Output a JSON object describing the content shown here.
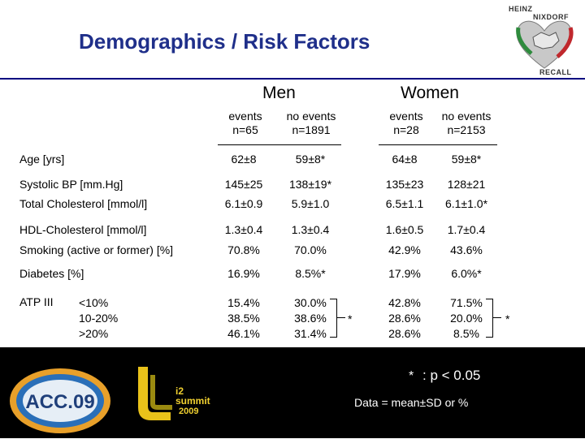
{
  "title": "Demographics / Risk Factors",
  "logo": {
    "line1": "HEINZ",
    "line2": "NIXDORF",
    "line3": "RECALL"
  },
  "groups": {
    "men": "Men",
    "women": "Women"
  },
  "columns": [
    {
      "label": "events",
      "n": "n=65"
    },
    {
      "label": "no events",
      "n": "n=1891"
    },
    {
      "label": "events",
      "n": "n=28"
    },
    {
      "label": "no events",
      "n": "n=2153"
    }
  ],
  "rows": [
    {
      "label": "Age [yrs]",
      "values": [
        "62±8",
        "59±8*",
        "64±8",
        "59±8*"
      ]
    },
    {
      "label": "Systolic BP [mm.Hg]",
      "values": [
        "145±25",
        "138±19*",
        "135±23",
        "128±21"
      ]
    },
    {
      "label": "Total Cholesterol [mmol/l]",
      "values": [
        "6.1±0.9",
        "5.9±1.0",
        "6.5±1.1",
        "6.1±1.0*"
      ]
    },
    {
      "label": "HDL-Cholesterol [mmol/l]",
      "values": [
        "1.3±0.4",
        "1.3±0.4",
        "1.6±0.5",
        "1.7±0.4"
      ]
    },
    {
      "label": "Smoking (active or former) [%]",
      "values": [
        "70.8%",
        "70.0%",
        "42.9%",
        "43.6%"
      ]
    },
    {
      "label": "Diabetes [%]",
      "values": [
        "16.9%",
        "8.5%*",
        "17.9%",
        "6.0%*"
      ]
    }
  ],
  "atp": {
    "label": "ATP III",
    "categories": [
      "<10%",
      "10-20%",
      ">20%"
    ],
    "values": [
      [
        "15.4%",
        "38.5%",
        "46.1%"
      ],
      [
        "30.0%",
        "38.6%",
        "31.4%"
      ],
      [
        "42.8%",
        "28.6%",
        "28.6%"
      ],
      [
        "71.5%",
        "20.0%",
        "8.5%"
      ]
    ],
    "men_star": "*",
    "women_star": "*"
  },
  "footer": {
    "acc_logo": "ACC.09",
    "i2_line1": "i2",
    "i2_line2": "summit",
    "i2_line3": "2009",
    "sig_star": "*",
    "sig_text": ": p < 0.05",
    "note": "Data = mean±SD or %"
  }
}
